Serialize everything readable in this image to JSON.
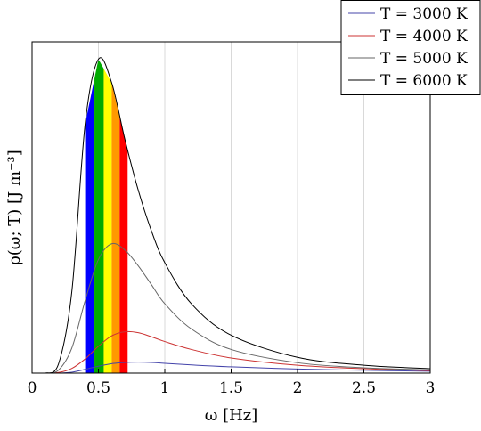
{
  "chart_data": {
    "type": "line",
    "xlabel": "ω [Hz]",
    "ylabel": "ρ(ω; T) [J m⁻³]",
    "xlim": [
      0,
      3
    ],
    "ylim": [
      0,
      1.05
    ],
    "xticks": [
      0,
      0.5,
      1,
      1.5,
      2,
      2.5,
      3
    ],
    "xtick_labels": [
      "0",
      "0.5",
      "1",
      "1.5",
      "2",
      "2.5",
      "3"
    ],
    "grid": "vertical",
    "legend_position": "top-right",
    "series": [
      {
        "name": "T = 3000 K",
        "temperature": 3000,
        "color": "#4444aa",
        "x": [
          0.1,
          0.2,
          0.3,
          0.4,
          0.5,
          0.6,
          0.7,
          0.8,
          0.9,
          1.0,
          1.2,
          1.5,
          2.0,
          2.5,
          3.0
        ],
        "y": [
          0.0,
          0.0002,
          0.003,
          0.012,
          0.022,
          0.03,
          0.034,
          0.035,
          0.034,
          0.031,
          0.026,
          0.02,
          0.013,
          0.009,
          0.006
        ]
      },
      {
        "name": "T = 4000 K",
        "temperature": 4000,
        "color": "#cc3333",
        "x": [
          0.1,
          0.2,
          0.3,
          0.4,
          0.5,
          0.6,
          0.7,
          0.8,
          0.9,
          1.0,
          1.2,
          1.5,
          2.0,
          2.5,
          3.0
        ],
        "y": [
          0.0,
          0.002,
          0.015,
          0.045,
          0.085,
          0.118,
          0.131,
          0.128,
          0.115,
          0.1,
          0.075,
          0.048,
          0.025,
          0.014,
          0.008
        ]
      },
      {
        "name": "T = 5000 K",
        "temperature": 5000,
        "color": "#666666",
        "x": [
          0.1,
          0.2,
          0.3,
          0.4,
          0.5,
          0.6,
          0.7,
          0.8,
          0.9,
          1.0,
          1.2,
          1.5,
          2.0,
          2.5,
          3.0
        ],
        "y": [
          0.0,
          0.01,
          0.08,
          0.23,
          0.36,
          0.41,
          0.39,
          0.34,
          0.28,
          0.22,
          0.14,
          0.075,
          0.033,
          0.017,
          0.01
        ]
      },
      {
        "name": "T = 6000 K",
        "temperature": 6000,
        "color": "#000000",
        "x": [
          0.1,
          0.2,
          0.3,
          0.4,
          0.5,
          0.6,
          0.7,
          0.8,
          0.9,
          1.0,
          1.2,
          1.5,
          2.0,
          2.5,
          3.0
        ],
        "y": [
          0.0,
          0.03,
          0.26,
          0.79,
          0.995,
          0.92,
          0.74,
          0.58,
          0.45,
          0.35,
          0.22,
          0.12,
          0.05,
          0.025,
          0.014
        ]
      }
    ],
    "visible_spectrum_bands": [
      {
        "color": "#0000ff",
        "x0": 0.4,
        "x1": 0.47
      },
      {
        "color": "#00aa00",
        "x0": 0.47,
        "x1": 0.54
      },
      {
        "color": "#ffff00",
        "x0": 0.54,
        "x1": 0.6
      },
      {
        "color": "#ff9900",
        "x0": 0.6,
        "x1": 0.66
      },
      {
        "color": "#ff0000",
        "x0": 0.66,
        "x1": 0.72
      }
    ]
  }
}
